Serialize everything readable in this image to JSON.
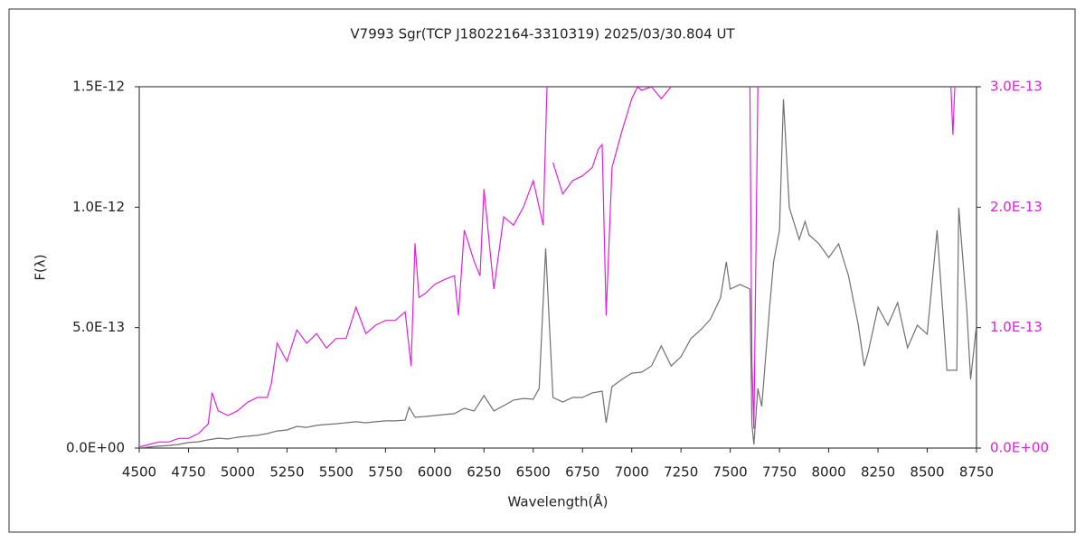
{
  "chart_data": {
    "type": "line",
    "title": "V7993 Sgr(TCP J18022164-3310319)   2025/03/30.804 UT",
    "x_label": "Wavelength(Å)",
    "y_label": "F(λ)",
    "xlim": [
      4500,
      8750
    ],
    "xticks": [
      4500,
      4750,
      5000,
      5250,
      5500,
      5750,
      6000,
      6250,
      6500,
      6750,
      7000,
      7250,
      7500,
      7750,
      8000,
      8250,
      8500,
      8750
    ],
    "ylim": [
      0,
      1.5e-12
    ],
    "yticks": [
      {
        "value": 0,
        "label": "0.0E+00"
      },
      {
        "value": 5e-13,
        "label": "5.0E-13"
      },
      {
        "value": 1e-12,
        "label": "1.0E-12"
      },
      {
        "value": 1.5e-12,
        "label": "1.5E-12"
      }
    ],
    "y2lim": [
      0,
      3e-13
    ],
    "y2ticks": [
      {
        "value": 0,
        "label": "0.0E+00"
      },
      {
        "value": 1e-13,
        "label": "1.0E-13"
      },
      {
        "value": 2e-13,
        "label": "2.0E-13"
      },
      {
        "value": 3e-13,
        "label": "3.0E-13"
      }
    ],
    "series": [
      {
        "color": "#707070",
        "x": [
          4500,
          4550,
          4600,
          4650,
          4700,
          4750,
          4800,
          4850,
          4900,
          4950,
          5000,
          5050,
          5100,
          5150,
          5200,
          5250,
          5300,
          5350,
          5400,
          5450,
          5500,
          5550,
          5600,
          5650,
          5700,
          5750,
          5800,
          5850,
          5870,
          5900,
          5950,
          6000,
          6050,
          6100,
          6150,
          6200,
          6250,
          6300,
          6350,
          6400,
          6450,
          6500,
          6530,
          6563,
          6600,
          6650,
          6700,
          6750,
          6800,
          6850,
          6870,
          6900,
          6950,
          7000,
          7050,
          7100,
          7150,
          7200,
          7250,
          7300,
          7350,
          7400,
          7450,
          7480,
          7500,
          7550,
          7600,
          7610,
          7620,
          7640,
          7660,
          7700,
          7720,
          7750,
          7770,
          7800,
          7850,
          7880,
          7900,
          7950,
          8000,
          8050,
          8100,
          8150,
          8180,
          8200,
          8250,
          8300,
          8350,
          8400,
          8450,
          8500,
          8550,
          8600,
          8650,
          8660,
          8700,
          8720,
          8750
        ],
        "values": [
          0,
          4e-15,
          8e-15,
          1.1e-14,
          1.5e-14,
          2.3e-14,
          2.6e-14,
          3.4e-14,
          4.1e-14,
          3.8e-14,
          4.5e-14,
          4.9e-14,
          5.3e-14,
          6e-14,
          7.1e-14,
          7.5e-14,
          9e-14,
          8.6e-14,
          9.4e-14,
          9.8e-14,
          1.01e-13,
          1.05e-13,
          1.09e-13,
          1.05e-13,
          1.09e-13,
          1.13e-13,
          1.13e-13,
          1.16e-13,
          1.69e-13,
          1.28e-13,
          1.31e-13,
          1.35e-13,
          1.39e-13,
          1.43e-13,
          1.65e-13,
          1.54e-13,
          2.18e-13,
          1.54e-13,
          1.76e-13,
          1.99e-13,
          2.06e-13,
          2.03e-13,
          2.48e-13,
          8.29e-13,
          2.1e-13,
          1.91e-13,
          2.1e-13,
          2.1e-13,
          2.29e-13,
          2.36e-13,
          1.05e-13,
          2.55e-13,
          2.85e-13,
          3.11e-13,
          3.15e-13,
          3.41e-13,
          4.24e-13,
          3.41e-13,
          3.79e-13,
          4.54e-13,
          4.91e-13,
          5.36e-13,
          6.23e-13,
          7.73e-13,
          6.6e-13,
          6.79e-13,
          6.6e-13,
          9.8e-14,
          1.5e-14,
          2.48e-13,
          1.73e-13,
          5.85e-13,
          7.73e-13,
          9.04e-13,
          1.448e-12,
          9.98e-13,
          8.66e-13,
          9.41e-13,
          8.85e-13,
          8.48e-13,
          7.91e-13,
          8.48e-13,
          7.16e-13,
          5.1e-13,
          3.41e-13,
          3.98e-13,
          5.85e-13,
          5.1e-13,
          6.04e-13,
          4.16e-13,
          5.1e-13,
          4.73e-13,
          9.04e-13,
          3.23e-13,
          3.23e-13,
          9.98e-13,
          5.85e-13,
          2.85e-13,
          5.1e-13
        ]
      },
      {
        "color": "#e020e0",
        "axis": "y2",
        "x": [
          4500,
          4550,
          4600,
          4650,
          4700,
          4750,
          4800,
          4850,
          4870,
          4900,
          4950,
          5000,
          5050,
          5100,
          5150,
          5170,
          5200,
          5250,
          5300,
          5350,
          5400,
          5450,
          5500,
          5550,
          5600,
          5650,
          5700,
          5750,
          5800,
          5850,
          5880,
          5900,
          5920,
          5950,
          6000,
          6050,
          6100,
          6120,
          6150,
          6200,
          6230,
          6250,
          6300,
          6350,
          6400,
          6450,
          6500,
          6550,
          6570,
          6585,
          6600,
          6650,
          6700,
          6750,
          6800,
          6830,
          6850,
          6870,
          6900,
          6950,
          7000,
          7030,
          7050,
          7100,
          7150,
          7200,
          7225,
          7600,
          7610,
          7620,
          7640,
          7660,
          8620,
          8630,
          8640,
          8650
        ],
        "values": [
          1e-15,
          3e-15,
          5e-15,
          5e-15,
          8e-15,
          8e-15,
          1.2e-14,
          2e-14,
          4.6e-14,
          3.1e-14,
          2.7e-14,
          3.1e-14,
          3.8e-14,
          4.2e-14,
          4.2e-14,
          5.3e-14,
          8.7e-14,
          7.2e-14,
          9.8e-14,
          8.7e-14,
          9.5e-14,
          8.3e-14,
          9.1e-14,
          9.1e-14,
          1.17e-13,
          9.5e-14,
          1.02e-13,
          1.06e-13,
          1.06e-13,
          1.13e-13,
          6.8e-14,
          1.7e-13,
          1.25e-13,
          1.28e-13,
          1.36e-13,
          1.4e-13,
          1.43e-13,
          1.1e-13,
          1.81e-13,
          1.55e-13,
          1.43e-13,
          2.15e-13,
          1.32e-13,
          1.92e-13,
          1.85e-13,
          2e-13,
          2.22e-13,
          1.85e-13,
          3e-13,
          null,
          2.37e-13,
          2.11e-13,
          2.22e-13,
          2.26e-13,
          2.33e-13,
          2.48e-13,
          2.52e-13,
          1.1e-13,
          2.33e-13,
          2.63e-13,
          2.9e-13,
          3e-13,
          2.97e-13,
          3e-13,
          2.9e-13,
          3e-13,
          null,
          3e-13,
          7.2e-14,
          1.6e-14,
          3e-13,
          null,
          3e-13,
          2.6e-13,
          3e-13,
          null
        ]
      }
    ]
  }
}
